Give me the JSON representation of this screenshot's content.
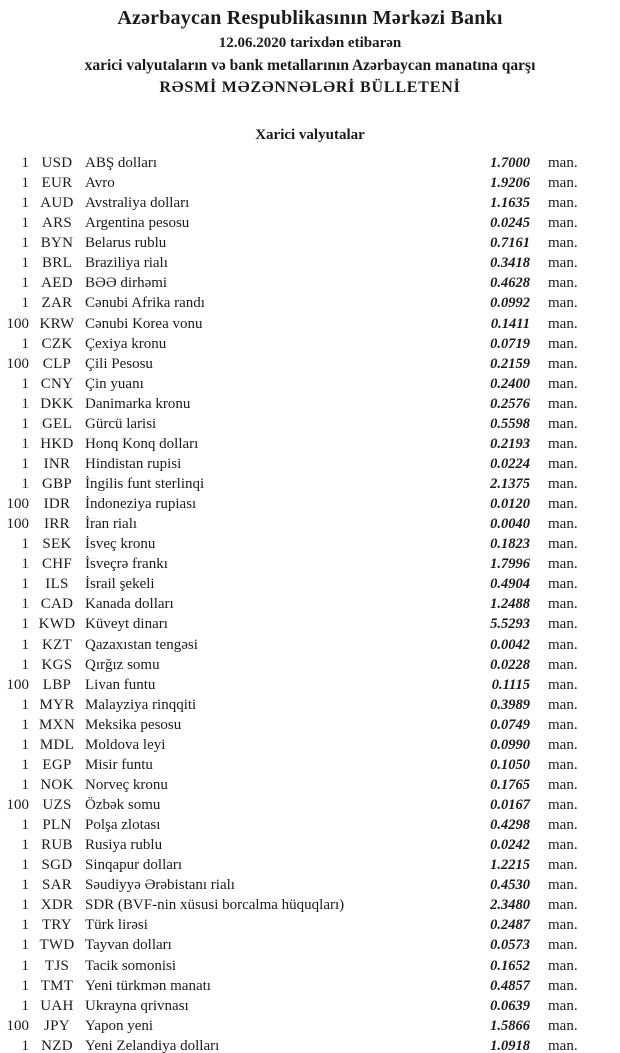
{
  "header": {
    "title": "Azərbaycan Respublikasının Mərkəzi Bankı",
    "date_line": "12.06.2020 tarixdən etibarən",
    "subtitle": "xarici valyutaların və bank metallarının Azərbaycan manatına qarşı",
    "bulletin_title": "RƏSMİ MƏZƏNNƏLƏRİ BÜLLETENİ"
  },
  "section": {
    "title": "Xarici valyutalar"
  },
  "unit_label": "man.",
  "rates": [
    {
      "qty": "1",
      "code": "USD",
      "name": "ABŞ dolları",
      "rate": "1.7000"
    },
    {
      "qty": "1",
      "code": "EUR",
      "name": "Avro",
      "rate": "1.9206"
    },
    {
      "qty": "1",
      "code": "AUD",
      "name": "Avstraliya dolları",
      "rate": "1.1635"
    },
    {
      "qty": "1",
      "code": "ARS",
      "name": "Argentina pesosu",
      "rate": "0.0245"
    },
    {
      "qty": "1",
      "code": "BYN",
      "name": "Belarus rublu",
      "rate": "0.7161"
    },
    {
      "qty": "1",
      "code": "BRL",
      "name": "Braziliya rialı",
      "rate": "0.3418"
    },
    {
      "qty": "1",
      "code": "AED",
      "name": "BƏƏ dirhəmi",
      "rate": "0.4628"
    },
    {
      "qty": "1",
      "code": "ZAR",
      "name": "Cənubi Afrika randı",
      "rate": "0.0992"
    },
    {
      "qty": "100",
      "code": "KRW",
      "name": "Cənubi Korea vonu",
      "rate": "0.1411"
    },
    {
      "qty": "1",
      "code": "CZK",
      "name": "Çexiya kronu",
      "rate": "0.0719"
    },
    {
      "qty": "100",
      "code": "CLP",
      "name": "Çili Pesosu",
      "rate": "0.2159"
    },
    {
      "qty": "1",
      "code": "CNY",
      "name": "Çin yuanı",
      "rate": "0.2400"
    },
    {
      "qty": "1",
      "code": "DKK",
      "name": "Danimarka kronu",
      "rate": "0.2576"
    },
    {
      "qty": "1",
      "code": "GEL",
      "name": "Gürcü larisi",
      "rate": "0.5598"
    },
    {
      "qty": "1",
      "code": "HKD",
      "name": "Honq Konq dolları",
      "rate": "0.2193"
    },
    {
      "qty": "1",
      "code": "INR",
      "name": "Hindistan rupisi",
      "rate": "0.0224"
    },
    {
      "qty": "1",
      "code": "GBP",
      "name": "İngilis funt sterlinqi",
      "rate": "2.1375"
    },
    {
      "qty": "100",
      "code": "IDR",
      "name": "İndoneziya rupiası",
      "rate": "0.0120"
    },
    {
      "qty": "100",
      "code": "IRR",
      "name": "İran rialı",
      "rate": "0.0040"
    },
    {
      "qty": "1",
      "code": "SEK",
      "name": "İsveç kronu",
      "rate": "0.1823"
    },
    {
      "qty": "1",
      "code": "CHF",
      "name": "İsveçrə frankı",
      "rate": "1.7996"
    },
    {
      "qty": "1",
      "code": "ILS",
      "name": "İsrail şekeli",
      "rate": "0.4904"
    },
    {
      "qty": "1",
      "code": "CAD",
      "name": "Kanada dolları",
      "rate": "1.2488"
    },
    {
      "qty": "1",
      "code": "KWD",
      "name": "Küveyt dinarı",
      "rate": "5.5293"
    },
    {
      "qty": "1",
      "code": "KZT",
      "name": "Qazaxıstan tengəsi",
      "rate": "0.0042"
    },
    {
      "qty": "1",
      "code": "KGS",
      "name": "Qırğız somu",
      "rate": "0.0228"
    },
    {
      "qty": "100",
      "code": "LBP",
      "name": "Livan funtu",
      "rate": "0.1115"
    },
    {
      "qty": "1",
      "code": "MYR",
      "name": "Malayziya rinqqiti",
      "rate": "0.3989"
    },
    {
      "qty": "1",
      "code": "MXN",
      "name": "Meksika pesosu",
      "rate": "0.0749"
    },
    {
      "qty": "1",
      "code": "MDL",
      "name": "Moldova leyi",
      "rate": "0.0990"
    },
    {
      "qty": "1",
      "code": "EGP",
      "name": "Misir funtu",
      "rate": "0.1050"
    },
    {
      "qty": "1",
      "code": "NOK",
      "name": "Norveç kronu",
      "rate": "0.1765"
    },
    {
      "qty": "100",
      "code": "UZS",
      "name": "Özbək somu",
      "rate": "0.0167"
    },
    {
      "qty": "1",
      "code": "PLN",
      "name": "Polşa zlotası",
      "rate": "0.4298"
    },
    {
      "qty": "1",
      "code": "RUB",
      "name": "Rusiya rublu",
      "rate": "0.0242"
    },
    {
      "qty": "1",
      "code": "SGD",
      "name": "Sinqapur dolları",
      "rate": "1.2215"
    },
    {
      "qty": "1",
      "code": "SAR",
      "name": "Səudiyyə Ərəbistanı rialı",
      "rate": "0.4530"
    },
    {
      "qty": "1",
      "code": "XDR",
      "name": "SDR (BVF-nin xüsusi borcalma hüquqları)",
      "rate": "2.3480"
    },
    {
      "qty": "1",
      "code": "TRY",
      "name": "Türk lirəsi",
      "rate": "0.2487"
    },
    {
      "qty": "1",
      "code": "TWD",
      "name": "Tayvan dolları",
      "rate": "0.0573"
    },
    {
      "qty": "1",
      "code": "TJS",
      "name": "Tacik somonisi",
      "rate": "0.1652"
    },
    {
      "qty": "1",
      "code": "TMT",
      "name": "Yeni türkmən manatı",
      "rate": "0.4857"
    },
    {
      "qty": "1",
      "code": "UAH",
      "name": "Ukrayna qrivnası",
      "rate": "0.0639"
    },
    {
      "qty": "100",
      "code": "JPY",
      "name": "Yapon yeni",
      "rate": "1.5866"
    },
    {
      "qty": "1",
      "code": "NZD",
      "name": "Yeni Zelandiya dolları",
      "rate": "1.0918"
    }
  ]
}
